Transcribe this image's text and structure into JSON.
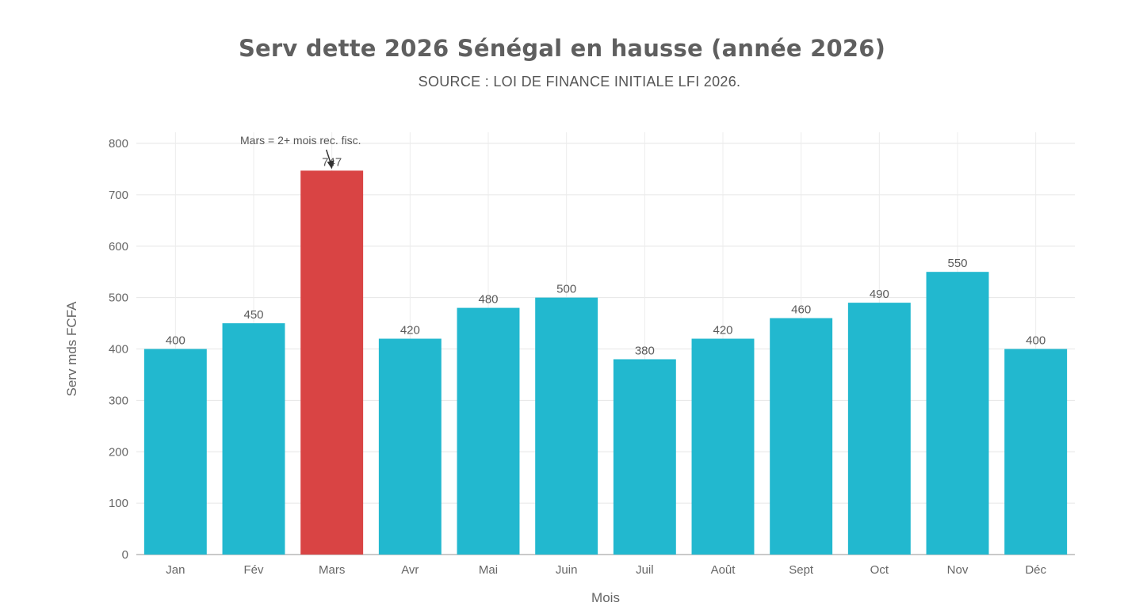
{
  "chart_data": {
    "type": "bar",
    "title": "Serv dette 2026 Sénégal en hausse (année 2026)",
    "subtitle": "SOURCE : LOI DE FINANCE INITIALE LFI 2026.",
    "xlabel": "Mois",
    "ylabel": "Serv mds FCFA",
    "categories": [
      "Jan",
      "Fév",
      "Mars",
      "Avr",
      "Mai",
      "Juin",
      "Juil",
      "Août",
      "Sept",
      "Oct",
      "Nov",
      "Déc"
    ],
    "values": [
      400,
      450,
      747,
      420,
      480,
      500,
      380,
      420,
      460,
      490,
      550,
      400
    ],
    "ylim": [
      0,
      800
    ],
    "yticks": [
      0,
      100,
      200,
      300,
      400,
      500,
      600,
      700,
      800
    ],
    "grid": true,
    "colors": {
      "default": "#22b8cf",
      "highlight": "#d94444",
      "highlight_category": "Mars"
    },
    "annotation": {
      "text": "Mars = 2+ mois rec. fisc.",
      "target_category": "Mars"
    }
  }
}
